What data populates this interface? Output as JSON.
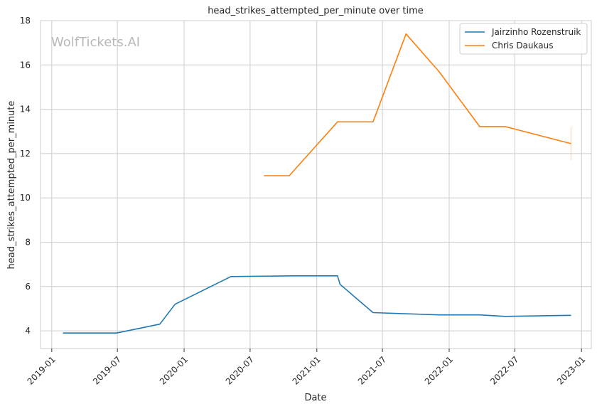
{
  "chart_data": {
    "type": "line",
    "title": "head_strikes_attempted_per_minute over time",
    "xlabel": "Date",
    "ylabel": "head_strikes_attempted_per_minute",
    "watermark": "WolfTickets.AI",
    "x_tick_labels": [
      "2019-01",
      "2019-07",
      "2020-01",
      "2020-07",
      "2021-01",
      "2021-07",
      "2022-01",
      "2022-07",
      "2023-01"
    ],
    "x_tick_dates": [
      "2019-01-01",
      "2019-07-01",
      "2020-01-01",
      "2020-07-01",
      "2021-01-01",
      "2021-07-01",
      "2022-01-01",
      "2022-07-01",
      "2023-01-01"
    ],
    "xlim": [
      "2018-12-01",
      "2023-01-28"
    ],
    "ylim": [
      3.2,
      18
    ],
    "y_ticks": [
      4,
      6,
      8,
      10,
      12,
      14,
      16,
      18
    ],
    "grid": true,
    "legend_position": "top-right",
    "series": [
      {
        "name": "Jairzinho Rozenstruik",
        "color": "#1f77b4",
        "points": [
          {
            "x": "2019-02-01",
            "y": 3.9
          },
          {
            "x": "2019-06-29",
            "y": 3.9
          },
          {
            "x": "2019-10-26",
            "y": 4.3
          },
          {
            "x": "2019-12-07",
            "y": 5.2
          },
          {
            "x": "2020-05-09",
            "y": 6.45
          },
          {
            "x": "2020-10-24",
            "y": 6.48
          },
          {
            "x": "2021-02-27",
            "y": 6.48
          },
          {
            "x": "2021-03-06",
            "y": 6.1
          },
          {
            "x": "2021-06-05",
            "y": 4.82
          },
          {
            "x": "2021-12-04",
            "y": 4.72
          },
          {
            "x": "2022-03-26",
            "y": 4.72
          },
          {
            "x": "2022-06-04",
            "y": 4.65
          },
          {
            "x": "2022-12-03",
            "y": 4.7
          }
        ]
      },
      {
        "name": "Chris Daukaus",
        "color": "#ff7f0e",
        "points": [
          {
            "x": "2020-08-08",
            "y": 11.0
          },
          {
            "x": "2020-10-17",
            "y": 11.0
          },
          {
            "x": "2021-02-27",
            "y": 13.43
          },
          {
            "x": "2021-06-05",
            "y": 13.43
          },
          {
            "x": "2021-09-04",
            "y": 17.4
          },
          {
            "x": "2021-12-04",
            "y": 15.7
          },
          {
            "x": "2022-03-26",
            "y": 13.22
          },
          {
            "x": "2022-06-04",
            "y": 13.22
          },
          {
            "x": "2022-12-03",
            "y": 12.45
          }
        ],
        "error_bar": {
          "x": "2022-12-03",
          "low": 11.7,
          "high": 13.2
        }
      }
    ]
  }
}
